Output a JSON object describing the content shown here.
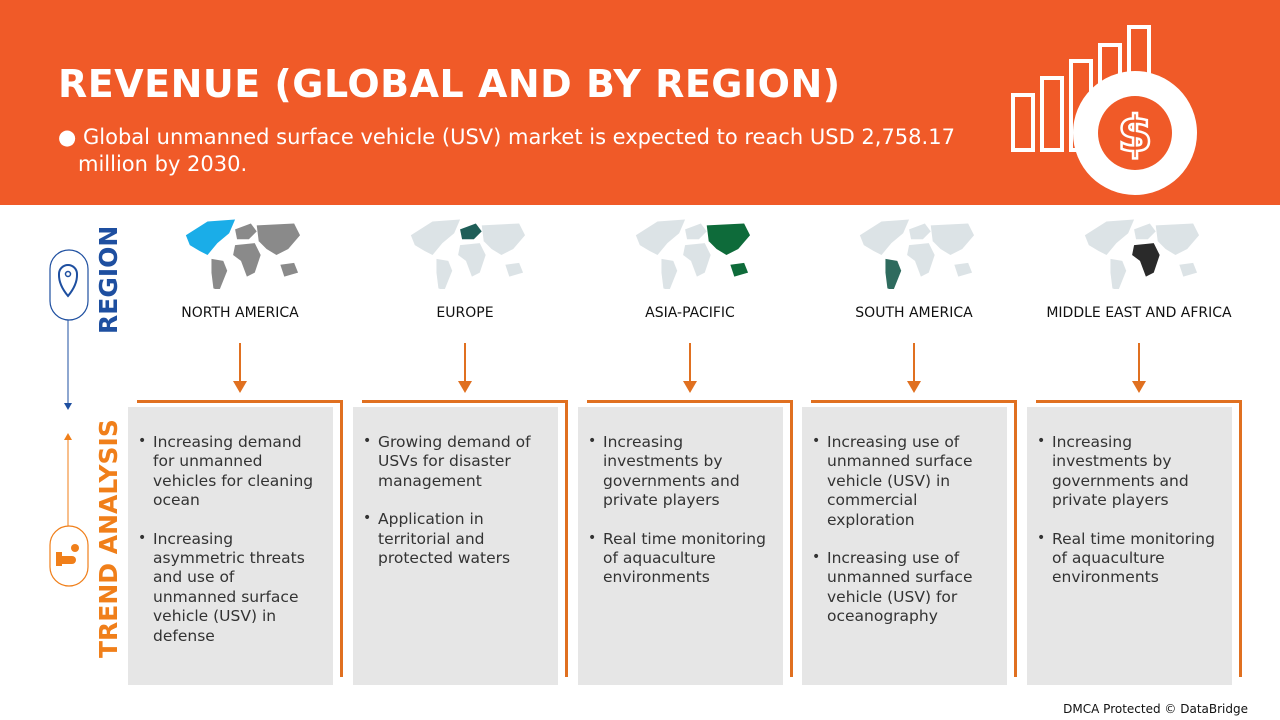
{
  "header": {
    "title": "REVENUE (GLOBAL AND BY REGION)",
    "subtitle": "● Global unmanned surface vehicle (USV) market is expected to reach USD 2,758.17 million by 2030.",
    "icon": "revenue-growth-dollar-icon"
  },
  "side": {
    "region_label": "REGION",
    "trend_label": "TREND ANALYSIS",
    "region_color": "#1E4FA0",
    "trend_color": "#F07F1A"
  },
  "colors": {
    "header": "#F05A28",
    "box": "#E6E6E6",
    "bracket": "#E07020"
  },
  "regions": [
    {
      "name": "NORTH AMERICA",
      "highlight": "#1AADE8",
      "bullets": [
        "Increasing demand for unmanned vehicles for cleaning ocean",
        "Increasing asymmetric threats and use of unmanned surface vehicle (USV) in defense"
      ]
    },
    {
      "name": "EUROPE",
      "highlight": "#1F5E58",
      "bullets": [
        "Growing demand of USVs for disaster management",
        "Application in territorial and protected waters"
      ]
    },
    {
      "name": "ASIA-PACIFIC",
      "highlight": "#0E6B3A",
      "bullets": [
        "Increasing investments by governments and private players",
        "Real time monitoring of aquaculture environments"
      ]
    },
    {
      "name": "SOUTH AMERICA",
      "highlight": "#2E6B5E",
      "bullets": [
        "Increasing use of unmanned surface vehicle (USV) in commercial exploration",
        "Increasing use of unmanned surface vehicle (USV) for oceanography"
      ]
    },
    {
      "name": "MIDDLE EAST AND AFRICA",
      "highlight": "#2A2A2A",
      "bullets": [
        "Increasing investments by governments and private players",
        "Real time monitoring of aquaculture environments"
      ]
    }
  ],
  "footer": "DMCA Protected © DataBridge"
}
